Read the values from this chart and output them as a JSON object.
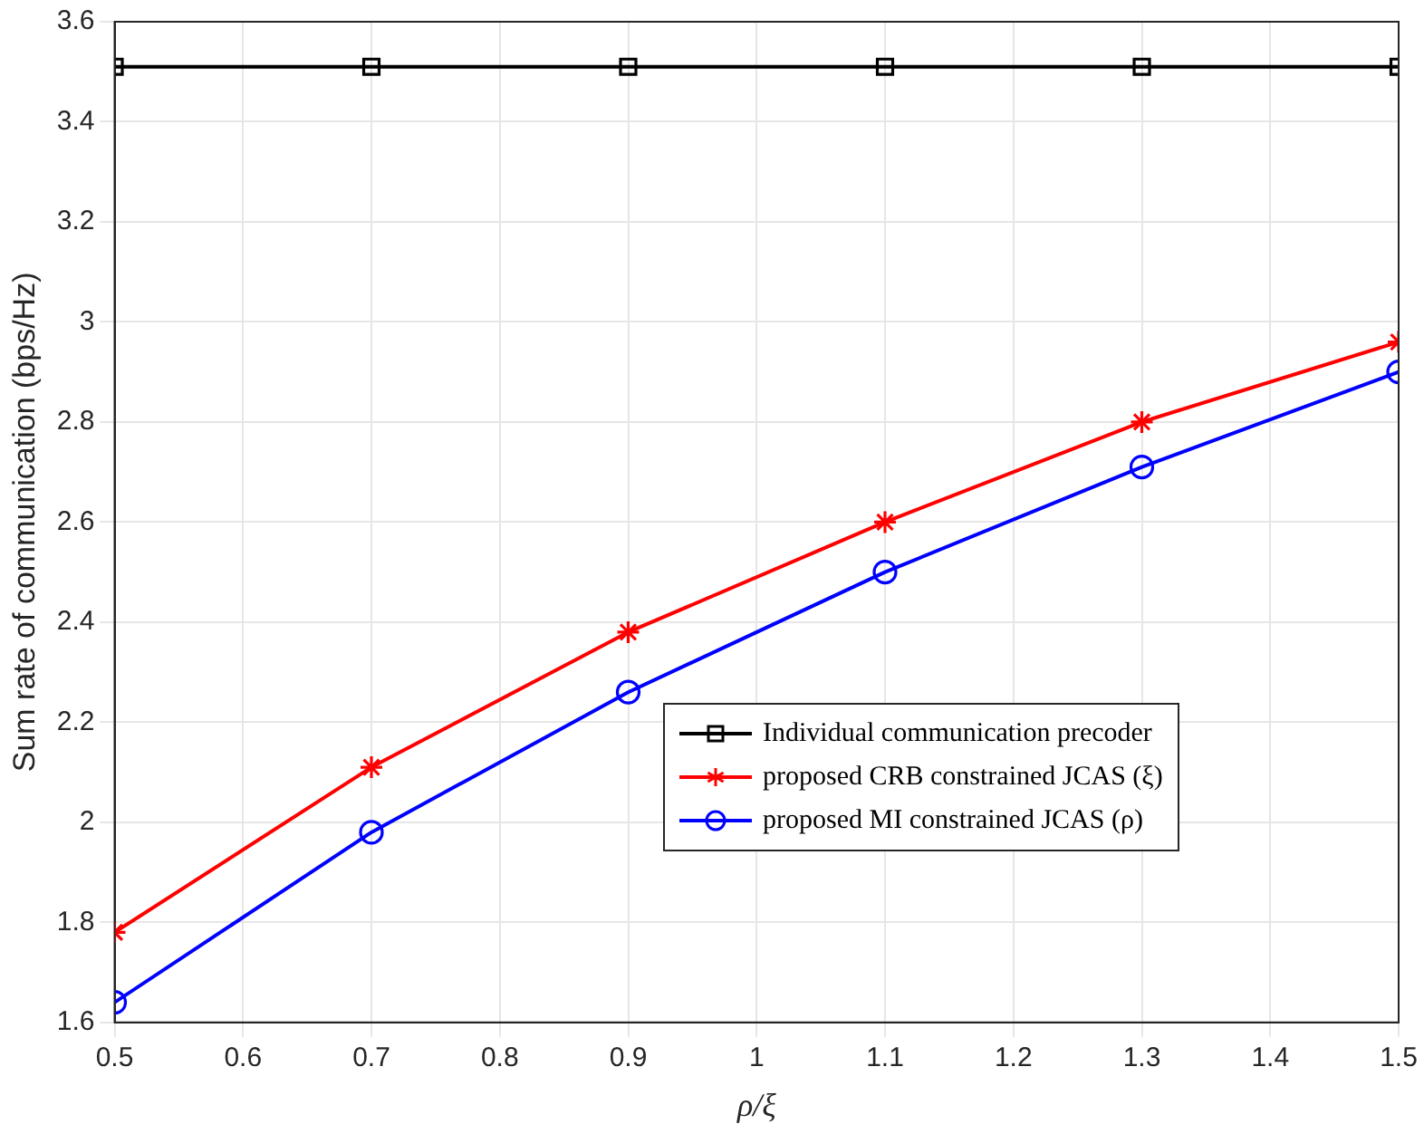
{
  "chart_data": {
    "type": "line",
    "xlabel": "ρ/ξ",
    "ylabel": "Sum rate of communication (bps/Hz)",
    "x": [
      0.5,
      0.7,
      0.9,
      1.1,
      1.3,
      1.5
    ],
    "series": [
      {
        "name": "Individual communication precoder",
        "color": "#000000",
        "marker": "square",
        "values": [
          3.51,
          3.51,
          3.51,
          3.51,
          3.51,
          3.51
        ]
      },
      {
        "name": "proposed CRB constrained JCAS (ξ)",
        "color": "#ff0000",
        "marker": "cross",
        "values": [
          1.78,
          2.11,
          2.38,
          2.6,
          2.8,
          2.96
        ]
      },
      {
        "name": "proposed MI constrained JCAS (ρ)",
        "color": "#0000ff",
        "marker": "circle",
        "values": [
          1.64,
          1.98,
          2.26,
          2.5,
          2.71,
          2.9
        ]
      }
    ],
    "xlim": [
      0.5,
      1.5
    ],
    "xticks": [
      0.5,
      0.6,
      0.7,
      0.8,
      0.9,
      1,
      1.1,
      1.2,
      1.3,
      1.4,
      1.5
    ],
    "ylim": [
      1.6,
      3.6
    ],
    "yticks": [
      1.6,
      1.8,
      2,
      2.2,
      2.4,
      2.6,
      2.8,
      3,
      3.2,
      3.4,
      3.6
    ],
    "grid": true,
    "legend": "bottom right",
    "line_style": "solid"
  }
}
